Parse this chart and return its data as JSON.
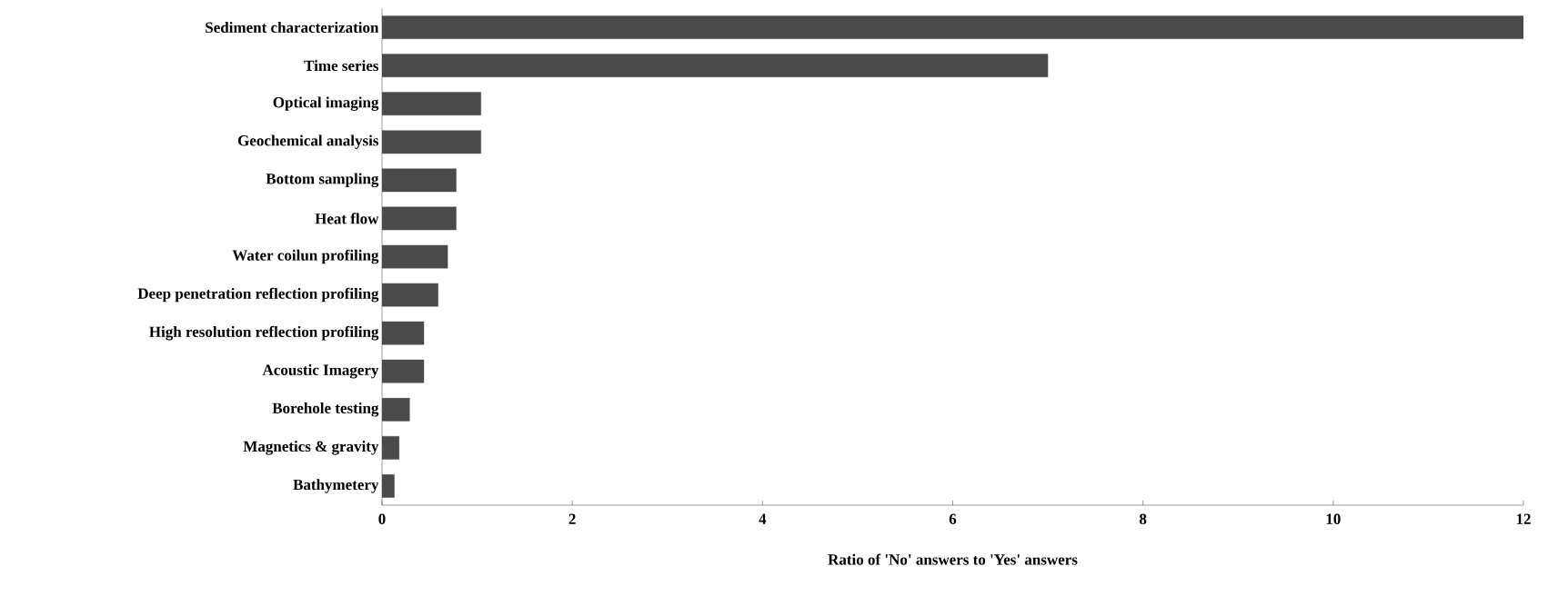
{
  "chart_data": {
    "type": "bar",
    "orientation": "horizontal",
    "xlabel": "Ratio of 'No' answers to 'Yes' answers",
    "categories": [
      "Sediment characterization",
      "Time series",
      "Optical imaging",
      "Geochemical analysis",
      "Bottom sampling",
      "Heat flow",
      "Water coilun profiling",
      "Deep penetration reflection profiling",
      "High resolution reflection profiling",
      "Acoustic Imagery",
      "Borehole testing",
      "Magnetics & gravity",
      "Bathymetery"
    ],
    "values": [
      12.0,
      7.0,
      1.04,
      1.04,
      0.78,
      0.78,
      0.69,
      0.59,
      0.44,
      0.44,
      0.29,
      0.18,
      0.13
    ],
    "color": "#4a4a4a",
    "xlim": [
      0,
      12
    ],
    "xticks": [
      0,
      2,
      4,
      6,
      8,
      10,
      12
    ]
  }
}
